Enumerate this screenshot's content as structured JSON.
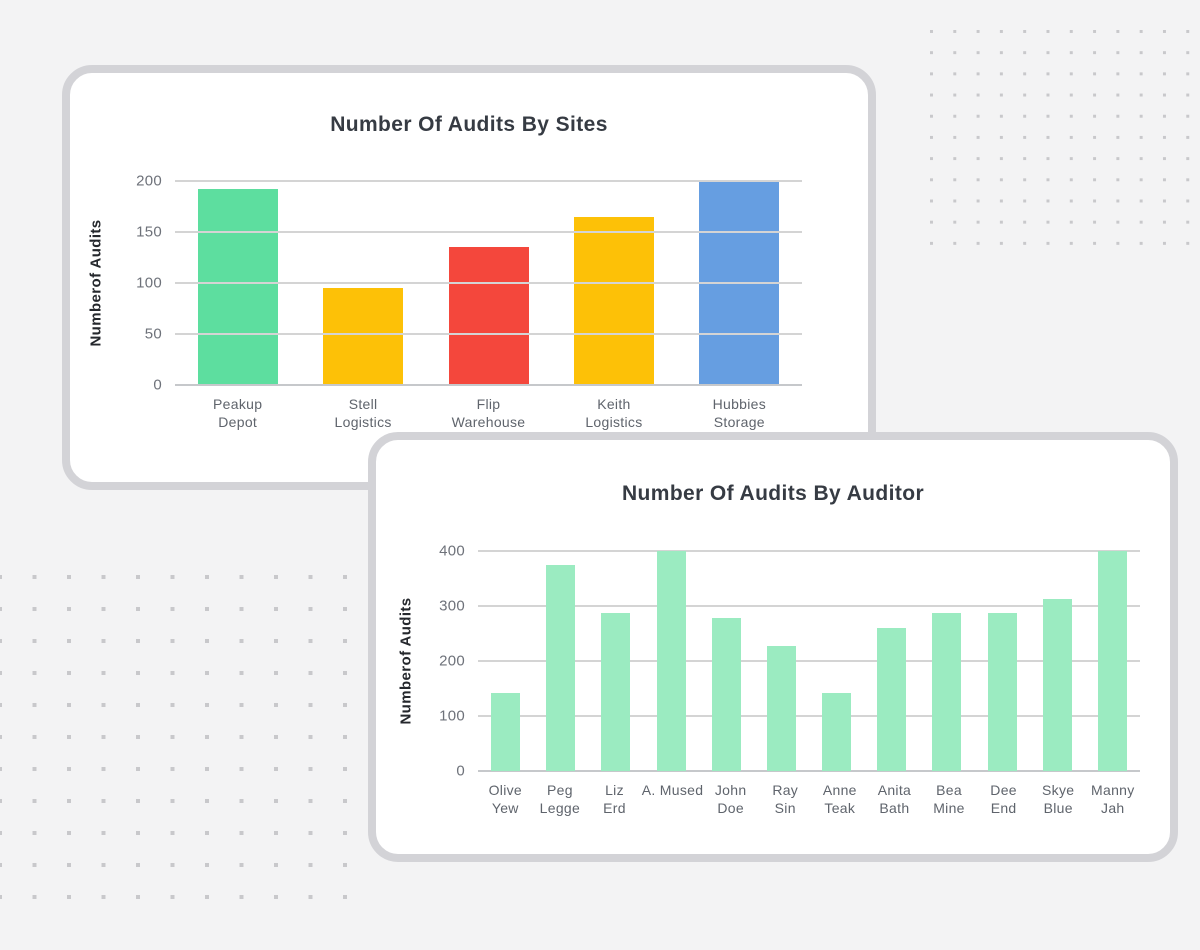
{
  "page": {
    "background": "#f3f3f4"
  },
  "colors": {
    "page_bg": "#f3f3f4",
    "card_border": "#d3d3d7",
    "card_bg": "#ffffff",
    "grid_line": "#d4d4d4",
    "axis_line": "#c6c8cb",
    "dot": "#c8c8cb",
    "title_text": "#363b43",
    "tick_text": "#6e727a",
    "xlabel_text": "#5f646c",
    "axis_label_text": "#24272c"
  },
  "chart_data": [
    {
      "type": "bar",
      "title": "Number Of Audits By Sites",
      "ylabel": "Numberof Audits",
      "xlabel": "",
      "categories": [
        "Peakup Depot",
        "Stell Logistics",
        "Flip Warehouse",
        "Keith Logistics",
        "Hubbies Storage"
      ],
      "label_lines": [
        [
          "Peakup",
          "Depot"
        ],
        [
          "Stell",
          "Logistics"
        ],
        [
          "Flip",
          "Warehouse"
        ],
        [
          "Keith",
          "Logistics"
        ],
        [
          "Hubbies",
          "Storage"
        ]
      ],
      "values": [
        192,
        95,
        135,
        165,
        200
      ],
      "bar_colors": [
        "#5dde9f",
        "#fdc107",
        "#f4473c",
        "#fdc107",
        "#669ee1"
      ],
      "ylim": [
        0,
        200
      ],
      "ytick_step": 50,
      "yticks": [
        0,
        50,
        100,
        150,
        200
      ],
      "grid": "horizontal",
      "gridline_layer": "above-bars",
      "legend": "none"
    },
    {
      "type": "bar",
      "title": "Number Of Audits By Auditor",
      "ylabel": "Numberof Audits",
      "xlabel": "",
      "categories": [
        "Olive Yew",
        "Peg Legge",
        "Liz Erd",
        "A. Mused",
        "John Doe",
        "Ray Sin",
        "Anne Teak",
        "Anita Bath",
        "Bea Mine",
        "Dee End",
        "Skye Blue",
        "Manny Jah"
      ],
      "label_lines": [
        [
          "Olive",
          "Yew"
        ],
        [
          "Peg",
          "Legge"
        ],
        [
          "Liz",
          "Erd"
        ],
        [
          "A. Mused"
        ],
        [
          "John",
          "Doe"
        ],
        [
          "Ray",
          "Sin"
        ],
        [
          "Anne",
          "Teak"
        ],
        [
          "Anita",
          "Bath"
        ],
        [
          "Bea",
          "Mine"
        ],
        [
          "Dee",
          "End"
        ],
        [
          "Skye",
          "Blue"
        ],
        [
          "Manny",
          "Jah"
        ]
      ],
      "values": [
        142,
        375,
        287,
        400,
        278,
        227,
        142,
        260,
        287,
        287,
        312,
        400
      ],
      "bar_color": "#9bebc1",
      "ylim": [
        0,
        400
      ],
      "ytick_step": 100,
      "yticks": [
        0,
        100,
        200,
        300,
        400
      ],
      "grid": "horizontal",
      "gridline_layer": "below-bars",
      "legend": "none"
    }
  ]
}
